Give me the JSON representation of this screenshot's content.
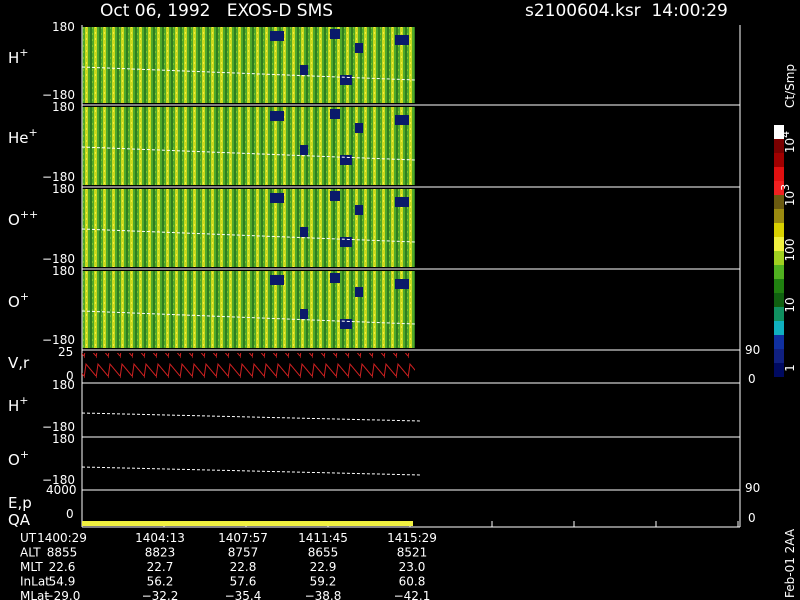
{
  "header": {
    "title": "Oct 06, 1992   EXOS-D SMS",
    "file": "s2100604.ksr  14:00:29"
  },
  "panels": [
    {
      "label": "H",
      "sup": "+",
      "top": "180",
      "bottom": "−180"
    },
    {
      "label": "He",
      "sup": "+",
      "top": "180",
      "bottom": "−180"
    },
    {
      "label": "O",
      "sup": "++",
      "top": "180",
      "bottom": "−180"
    },
    {
      "label": "O",
      "sup": "+",
      "top": "180",
      "bottom": "−180"
    }
  ],
  "vr": {
    "label": "V,r",
    "top": "25",
    "bottom": "0",
    "right_top": "90",
    "right_bottom": "0"
  },
  "lines": [
    {
      "label": "H",
      "sup": "+",
      "top": "180",
      "bottom": "−180"
    },
    {
      "label": "O",
      "sup": "+",
      "top": "180",
      "bottom": "−180"
    }
  ],
  "ep": {
    "label": "E,p",
    "top": "4000",
    "bottom": "0",
    "right_top": "90",
    "right_bottom": "0"
  },
  "qa": "QA",
  "colorbar": {
    "title": "Ct/Smp",
    "ticks": [
      {
        "text": "10",
        "sup": "4"
      },
      {
        "text": "10",
        "sup": "3"
      },
      {
        "text": "100",
        "sup": ""
      },
      {
        "text": "10",
        "sup": ""
      },
      {
        "text": "1",
        "sup": ""
      }
    ]
  },
  "table": {
    "rows": [
      [
        "UT",
        "1400:29",
        "1404:13",
        "1407:57",
        "1411:45",
        "1415:29"
      ],
      [
        "ALT",
        "8855",
        "8823",
        "8757",
        "8655",
        "8521"
      ],
      [
        "MLT",
        "22.6",
        "22.7",
        "22.8",
        "22.9",
        "23.0"
      ],
      [
        "InLat",
        "54.9",
        "56.2",
        "57.6",
        "59.2",
        "60.8"
      ],
      [
        "MLat",
        "−29.0",
        "−32.2",
        "−35.4",
        "−38.8",
        "−42.1"
      ]
    ]
  },
  "footer": "Feb-01 2AA"
}
